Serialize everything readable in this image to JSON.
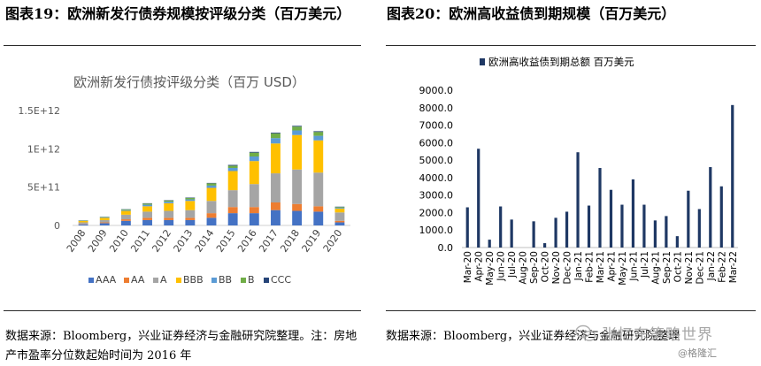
{
  "figures": {
    "left": {
      "heading": "图表19：欧洲新发行债券规模按评级分类（百万美元）",
      "source": "数据来源：Bloomberg，兴业证券经济与金融研究院整理。注：房地产市盈率分位数起始时间为 2016 年"
    },
    "right": {
      "heading": "图表20：欧洲高收益债到期规模（百万美元）",
      "source": "数据来源：Bloomberg，兴业证券经济与金融研究院整理"
    }
  },
  "watermark": {
    "name": "张忆东策略世界",
    "handle": "@格隆汇"
  },
  "colors": {
    "AAA": "#4472c4",
    "AA": "#ed7d31",
    "A": "#a5a5a5",
    "BBB": "#ffc000",
    "BB": "#5b9bd5",
    "B": "#70ad47",
    "CCC": "#264478",
    "navy": "#1f3864"
  },
  "chart_data": [
    {
      "type": "bar",
      "stacked": true,
      "title": "欧洲新发行债按评级分类（百万 USD）",
      "categories": [
        "2008",
        "2009",
        "2010",
        "2011",
        "2012",
        "2013",
        "2014",
        "2015",
        "2016",
        "2017",
        "2018",
        "2019",
        "2020"
      ],
      "ylim": [
        0,
        1500000000000.0
      ],
      "yticks": [
        0,
        500000000000.0,
        1000000000000.0,
        1500000000000.0
      ],
      "ytick_labels": [
        "0",
        "5E+11",
        "1E+12",
        "1.5E+12"
      ],
      "legend_position": "bottom",
      "grid": false,
      "series": [
        {
          "name": "AAA",
          "values": [
            15000000000.0,
            30000000000.0,
            60000000000.0,
            70000000000.0,
            70000000000.0,
            70000000000.0,
            100000000000.0,
            160000000000.0,
            160000000000.0,
            200000000000.0,
            190000000000.0,
            180000000000.0,
            40000000000.0
          ]
        },
        {
          "name": "AA",
          "values": [
            5000000000.0,
            10000000000.0,
            20000000000.0,
            30000000000.0,
            30000000000.0,
            30000000000.0,
            60000000000.0,
            80000000000.0,
            80000000000.0,
            100000000000.0,
            90000000000.0,
            70000000000.0,
            20000000000.0
          ]
        },
        {
          "name": "A",
          "values": [
            20000000000.0,
            30000000000.0,
            60000000000.0,
            80000000000.0,
            90000000000.0,
            100000000000.0,
            160000000000.0,
            220000000000.0,
            300000000000.0,
            380000000000.0,
            450000000000.0,
            440000000000.0,
            110000000000.0
          ]
        },
        {
          "name": "BBB",
          "values": [
            20000000000.0,
            30000000000.0,
            50000000000.0,
            70000000000.0,
            100000000000.0,
            120000000000.0,
            170000000000.0,
            250000000000.0,
            300000000000.0,
            390000000000.0,
            450000000000.0,
            420000000000.0,
            50000000000.0
          ]
        },
        {
          "name": "BB",
          "values": [
            5000000000.0,
            8000000000.0,
            10000000000.0,
            20000000000.0,
            20000000000.0,
            20000000000.0,
            30000000000.0,
            40000000000.0,
            60000000000.0,
            70000000000.0,
            60000000000.0,
            60000000000.0,
            10000000000.0
          ]
        },
        {
          "name": "B",
          "values": [
            3000000000.0,
            5000000000.0,
            10000000000.0,
            15000000000.0,
            15000000000.0,
            20000000000.0,
            30000000000.0,
            30000000000.0,
            50000000000.0,
            60000000000.0,
            50000000000.0,
            50000000000.0,
            10000000000.0
          ]
        },
        {
          "name": "CCC",
          "values": [
            1000000000.0,
            2000000000.0,
            3000000000.0,
            5000000000.0,
            5000000000.0,
            5000000000.0,
            5000000000.0,
            10000000000.0,
            10000000000.0,
            10000000000.0,
            10000000000.0,
            10000000000.0,
            5000000000.0
          ]
        }
      ]
    },
    {
      "type": "bar",
      "title": "",
      "categories": [
        "Mar-20",
        "Apr-20",
        "May-20",
        "Jun-20",
        "Jul-20",
        "Aug-20",
        "Sep-20",
        "Oct-20",
        "Nov-20",
        "Dec-20",
        "Jan-21",
        "Feb-21",
        "Mar-21",
        "Apr-21",
        "May-21",
        "Jun-21",
        "Jul-21",
        "Aug-21",
        "Sep-21",
        "Oct-21",
        "Nov-21",
        "Dec-21",
        "Jan-22",
        "Feb-22",
        "Mar-22"
      ],
      "ylim": [
        0,
        9000
      ],
      "yticks": [
        0,
        1000,
        2000,
        3000,
        4000,
        5000,
        6000,
        7000,
        8000,
        9000
      ],
      "ytick_labels": [
        "0.0",
        "1000.0",
        "2000.0",
        "3000.0",
        "4000.0",
        "5000.0",
        "6000.0",
        "7000.0",
        "8000.0",
        "9000.0"
      ],
      "legend_position": "top",
      "grid": false,
      "series": [
        {
          "name": "欧洲高收益债到期总额 百万美元",
          "values": [
            2300,
            5650,
            450,
            2350,
            1600,
            0,
            1500,
            250,
            1700,
            2050,
            5450,
            2400,
            4550,
            3300,
            2450,
            3900,
            2450,
            1550,
            1800,
            650,
            3250,
            2200,
            4600,
            3500,
            8150
          ]
        }
      ]
    }
  ]
}
